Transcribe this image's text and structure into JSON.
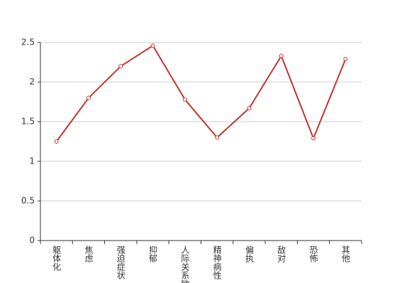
{
  "chart_data": {
    "type": "line",
    "categories": [
      "躯体化",
      "焦虑",
      "强迫症状",
      "抑郁",
      "人际关系敏感",
      "精神病性",
      "偏执",
      "敌对",
      "恐怖",
      "其他"
    ],
    "values": [
      1.25,
      1.8,
      2.2,
      2.46,
      1.78,
      1.3,
      1.67,
      2.33,
      1.29,
      2.29
    ],
    "color": "#c23531",
    "ylim": [
      0,
      2.5
    ],
    "yticks": [
      0,
      0.5,
      1,
      1.5,
      2,
      2.5
    ],
    "grid": true
  }
}
